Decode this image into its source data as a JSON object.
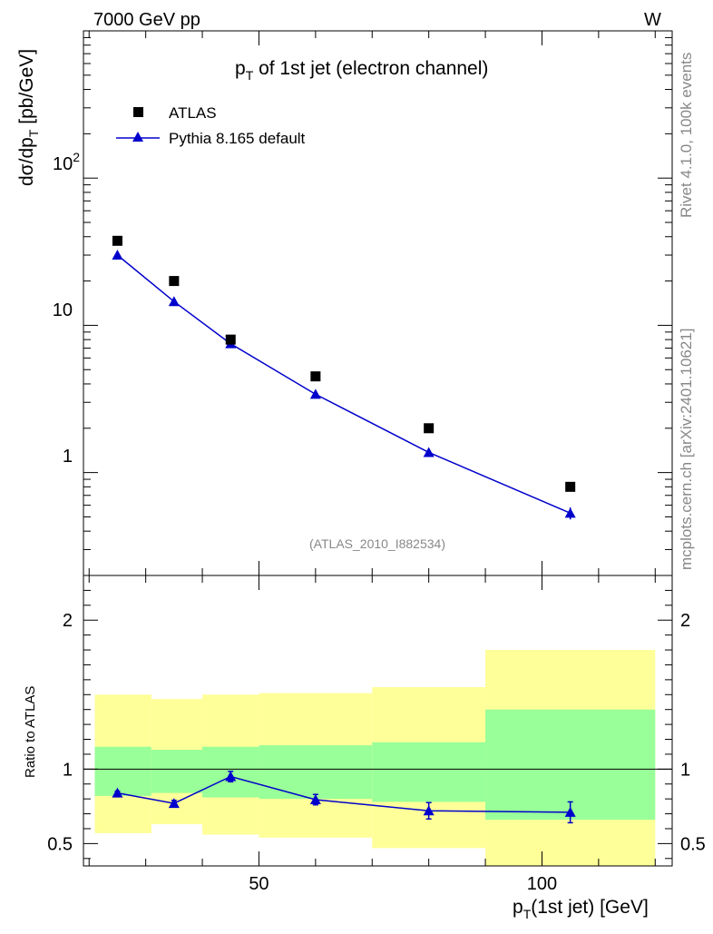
{
  "header": {
    "left": "7000 GeV pp",
    "right": "W"
  },
  "side": {
    "rivet": "Rivet 4.1.0,  100k events",
    "mcplots": "mcplots.cern.ch [arXiv:2401.10621]"
  },
  "colors": {
    "mc": "#0000cc",
    "data": "#000000",
    "band_inner": "#99ff99",
    "band_outer": "#ffff99"
  },
  "chart_data": [
    {
      "type": "scatter",
      "title": "p_T of 1st jet (electron channel)",
      "title_parts": {
        "p": "p",
        "sub": "T",
        "rest": " of 1st jet (electron channel)"
      },
      "ylabel_parts": {
        "a": "dσ/dp",
        "sub": "T",
        "b": "  [pb/GeV]"
      },
      "yscale": "log",
      "ylim": [
        0.2,
        1000
      ],
      "xlim": [
        19,
        123
      ],
      "y_tick_labels": {
        "1": "1",
        "10": "10",
        "100": "10",
        "100_sup": "2"
      },
      "analysis_id": "(ATLAS_2010_I882534)",
      "legend": {
        "position": "top-left",
        "data_label": "ATLAS",
        "mc_label": "Pythia 8.165 default"
      },
      "series": [
        {
          "name": "ATLAS",
          "marker": "square",
          "x": [
            25,
            35,
            45,
            60,
            80,
            105
          ],
          "y": [
            37.5,
            20,
            8,
            4.5,
            2.0,
            0.8
          ]
        },
        {
          "name": "Pythia 8.165 default",
          "marker": "triangle",
          "x": [
            25,
            35,
            45,
            60,
            80,
            105
          ],
          "y": [
            30,
            14.5,
            7.5,
            3.4,
            1.37,
            0.53
          ],
          "yerr": [
            0.5,
            0.3,
            0.2,
            0.07,
            0.08,
            0.05
          ]
        }
      ]
    },
    {
      "type": "line",
      "ylabel": "Ratio to ATLAS",
      "ylim": [
        0.35,
        2.3
      ],
      "xlim": [
        19,
        123
      ],
      "y_ticks": [
        0.5,
        1,
        2
      ],
      "y_tick_labels": [
        "0.5",
        "1",
        "2"
      ],
      "x_ticks": [
        50,
        100
      ],
      "x_tick_labels": [
        "50",
        "100"
      ],
      "xlabel_parts": {
        "p": "p",
        "sub": "T",
        "rest": "(1st jet) [GeV]"
      },
      "bands": [
        {
          "x0": 21,
          "x1": 31,
          "inner": [
            0.82,
            1.15
          ],
          "outer": [
            0.57,
            1.5
          ]
        },
        {
          "x0": 31,
          "x1": 40,
          "inner": [
            0.84,
            1.13
          ],
          "outer": [
            0.63,
            1.47
          ]
        },
        {
          "x0": 40,
          "x1": 50,
          "inner": [
            0.81,
            1.15
          ],
          "outer": [
            0.56,
            1.5
          ]
        },
        {
          "x0": 50,
          "x1": 70,
          "inner": [
            0.8,
            1.16
          ],
          "outer": [
            0.54,
            1.51
          ]
        },
        {
          "x0": 70,
          "x1": 90,
          "inner": [
            0.78,
            1.18
          ],
          "outer": [
            0.47,
            1.55
          ]
        },
        {
          "x0": 90,
          "x1": 120,
          "inner": [
            0.66,
            1.4
          ],
          "outer": [
            0.3,
            1.8
          ]
        }
      ],
      "ratio": {
        "x": [
          25,
          35,
          45,
          60,
          80,
          105
        ],
        "y": [
          0.84,
          0.77,
          0.95,
          0.795,
          0.72,
          0.71
        ],
        "yerr": [
          0.012,
          0.02,
          0.035,
          0.035,
          0.055,
          0.07
        ]
      }
    }
  ]
}
